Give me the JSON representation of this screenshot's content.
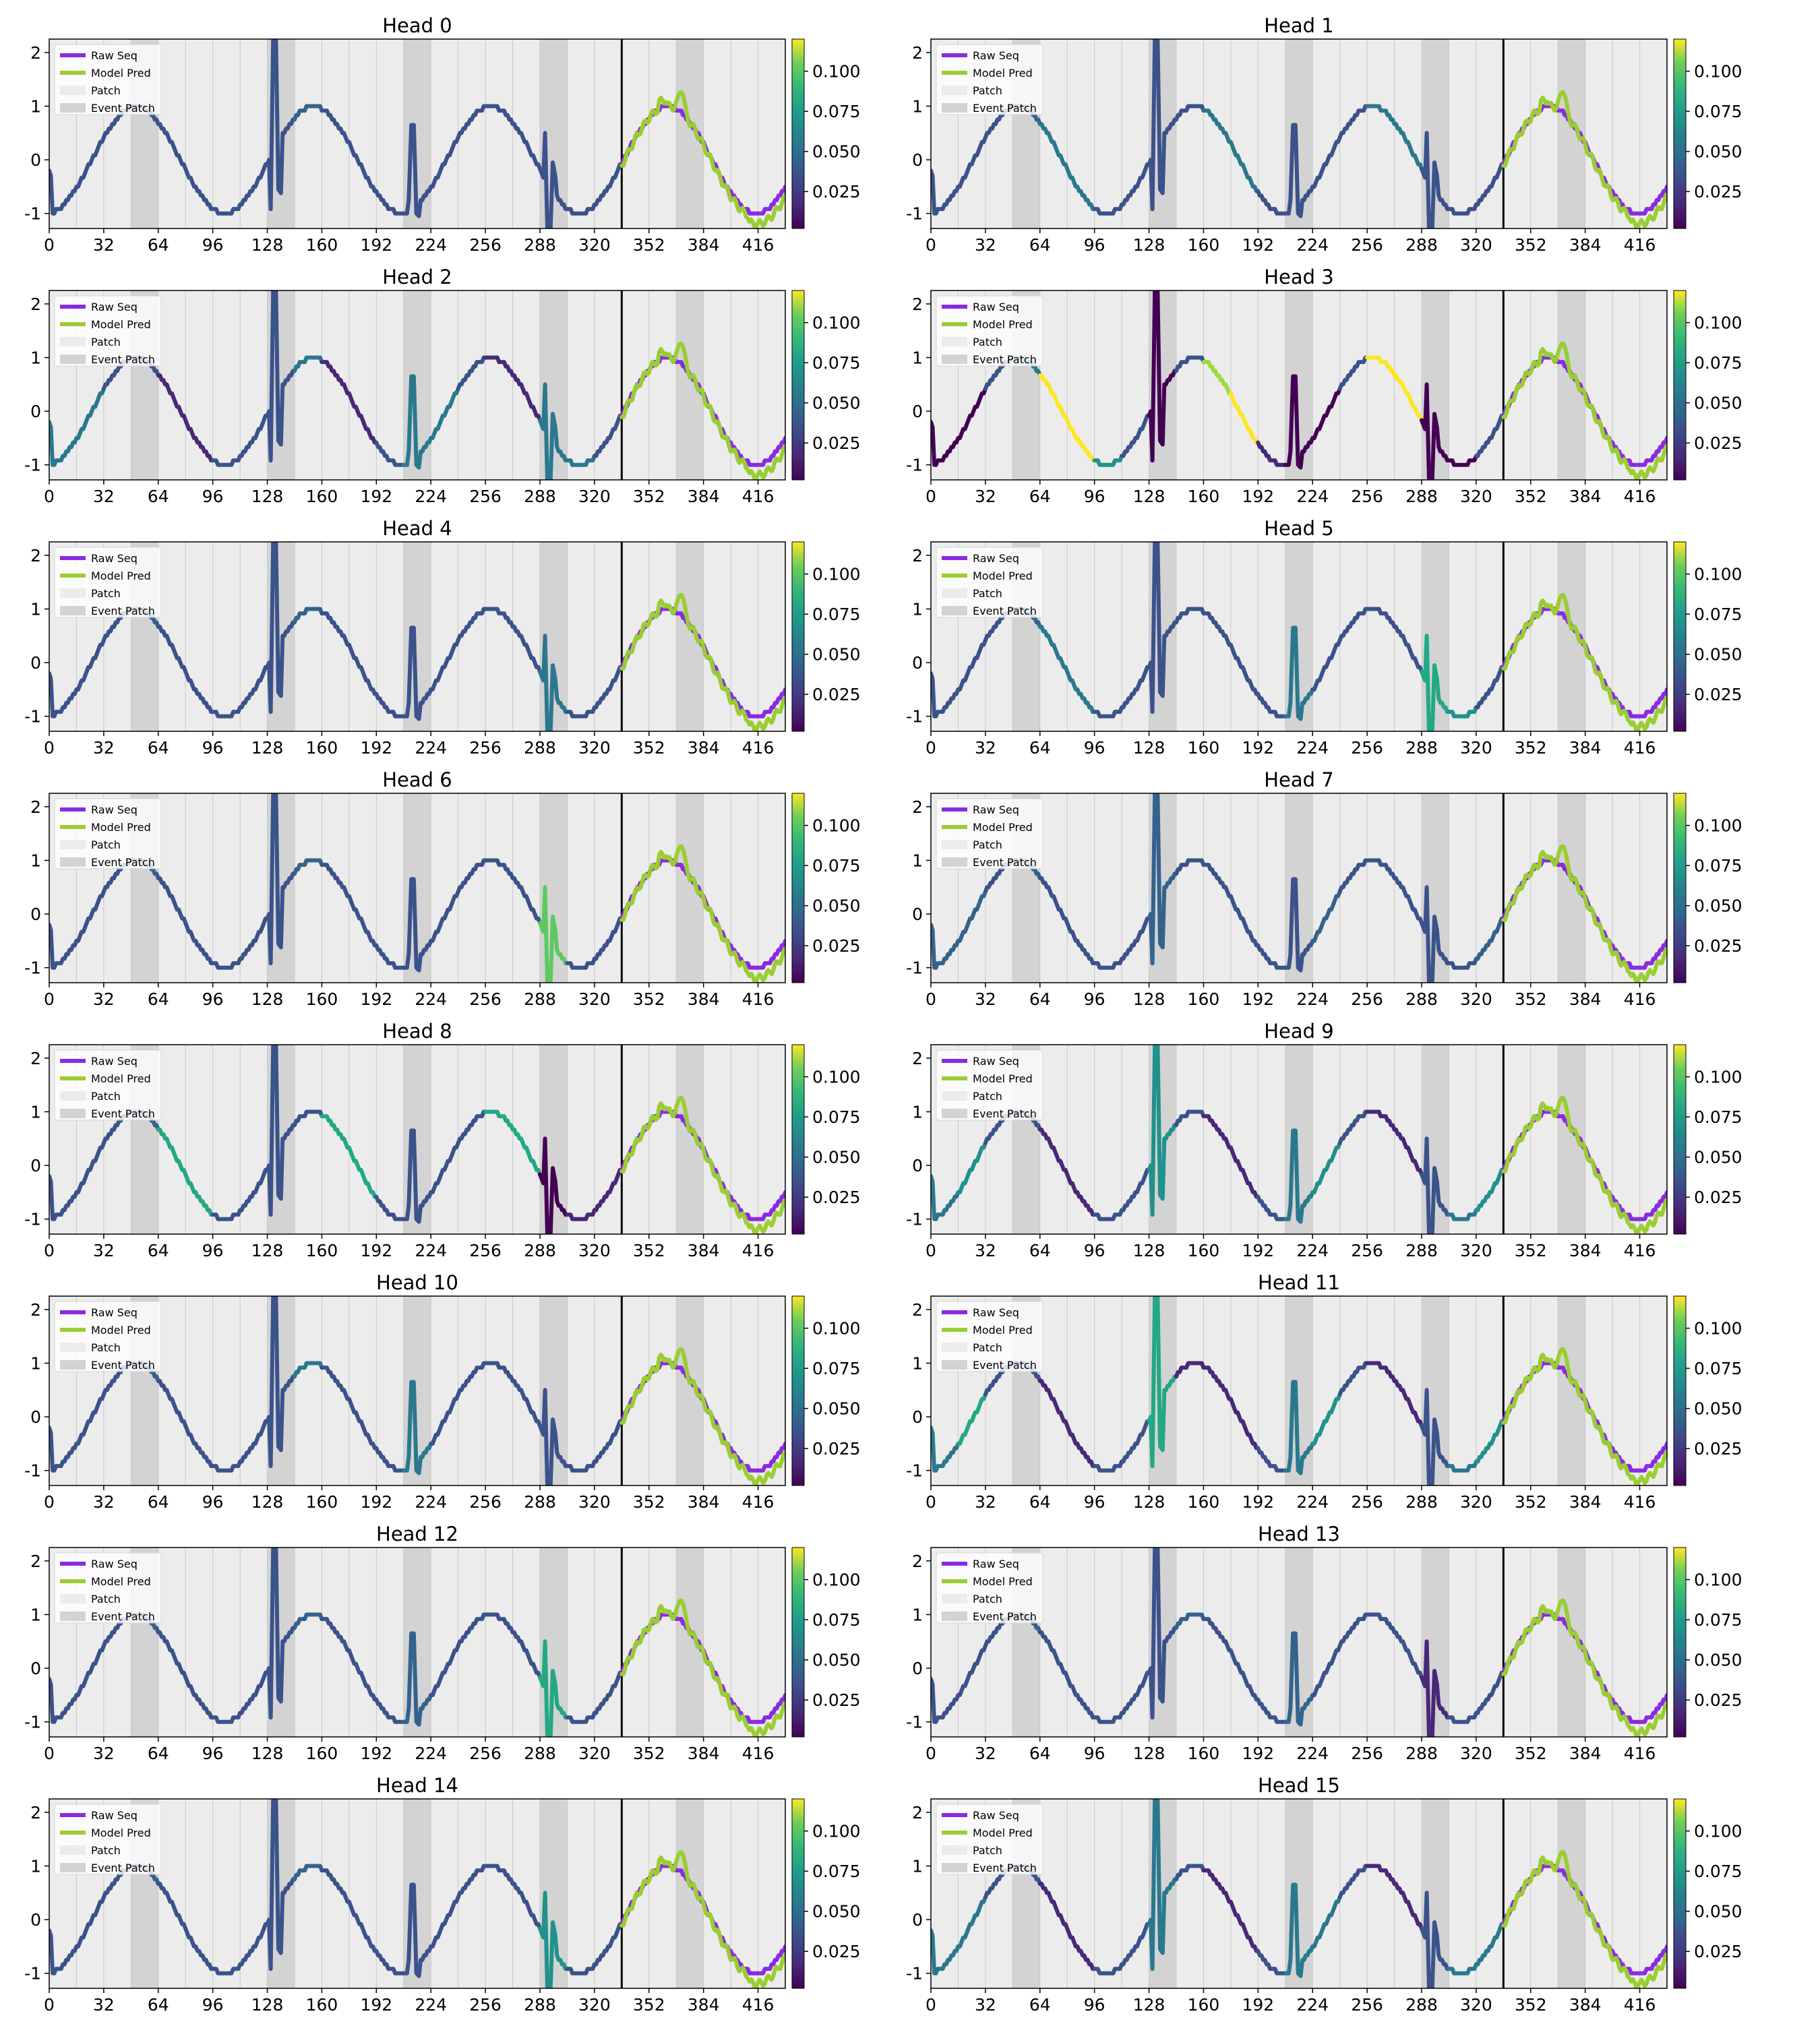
{
  "figure": {
    "xticks": [
      0,
      32,
      64,
      96,
      128,
      160,
      192,
      224,
      256,
      288,
      320,
      352,
      384,
      416
    ],
    "yticks": [
      -1,
      0,
      1,
      2
    ],
    "cbar_ticks": [
      "0.025",
      "0.050",
      "0.075",
      "0.100"
    ],
    "legend": [
      "Raw Seq",
      "Model Pred",
      "Patch",
      "Event Patch"
    ],
    "colors": {
      "raw_seq": "#8a2be2",
      "model_pred": "#9acd32",
      "patch": "#ececec",
      "event_patch": "#d3d3d3",
      "divider": "#000000"
    }
  },
  "chart_data": {
    "type": "line",
    "xlim": [
      0,
      432
    ],
    "ylim": [
      -1.28,
      2.25
    ],
    "cbar_range": [
      0.002,
      0.12
    ],
    "colormap": "viridis",
    "patch_length": 16,
    "event_patches": [
      [
        48,
        64
      ],
      [
        128,
        144
      ],
      [
        208,
        224
      ],
      [
        288,
        304
      ],
      [
        368,
        384
      ]
    ],
    "context_end": 336,
    "spikes": [
      {
        "x": 133,
        "peak": 2.4,
        "base_before": -0.92,
        "after": -0.55,
        "low": -0.62
      },
      {
        "x": 214,
        "peak": 0.65,
        "base_before": -0.75,
        "after": -1.0,
        "low": -1.05
      },
      {
        "x": 294,
        "peak": -1.5,
        "base_before": 0.5,
        "after": -0.05,
        "low": -0.3
      }
    ],
    "heads": [
      {
        "title": "Head 0",
        "seg_colors": [
          "#3b528b",
          "#3b528b",
          "#3b528b",
          "#3b528b",
          "#3b528b",
          "#3b528b",
          "#3b528b",
          "#3b528b",
          "#3b528b",
          "#33638d",
          "#3b528b",
          "#3b528b",
          "#3b528b",
          "#3b528b",
          "#3b528b",
          "#3b528b",
          "#3b528b",
          "#3b528b",
          "#3b528b",
          "#3b528b",
          "#3b528b"
        ]
      },
      {
        "title": "Head 1",
        "seg_colors": [
          "#3b528b",
          "#3b528b",
          "#3b528b",
          "#33638d",
          "#2a788e",
          "#2a788e",
          "#3b528b",
          "#3b528b",
          "#3b528b",
          "#3b528b",
          "#2a788e",
          "#2a788e",
          "#3b528b",
          "#3b528b",
          "#3b528b",
          "#3b528b",
          "#2a788e",
          "#2a788e",
          "#3b528b",
          "#3b528b",
          "#3b528b"
        ]
      },
      {
        "title": "Head 2",
        "seg_colors": [
          "#2a788e",
          "#2a788e",
          "#3b528b",
          "#3b528b",
          "#482878",
          "#482878",
          "#3b528b",
          "#3b528b",
          "#3b528b",
          "#2a788e",
          "#482878",
          "#482878",
          "#3b528b",
          "#2a788e",
          "#2a788e",
          "#3b528b",
          "#482878",
          "#482878",
          "#2a788e",
          "#2a788e",
          "#3b528b"
        ]
      },
      {
        "title": "Head 3",
        "seg_colors": [
          "#440154",
          "#440154",
          "#3b528b",
          "#2a788e",
          "#fde725",
          "#fde725",
          "#21918c",
          "#3b528b",
          "#440154",
          "#3b528b",
          "#a0da39",
          "#fde725",
          "#482878",
          "#440154",
          "#440154",
          "#3b528b",
          "#fde725",
          "#fde725",
          "#440154",
          "#440154",
          "#3b528b"
        ]
      },
      {
        "title": "Head 4",
        "seg_colors": [
          "#3b528b",
          "#3b528b",
          "#3b528b",
          "#33638d",
          "#3b528b",
          "#3b528b",
          "#3b528b",
          "#3b528b",
          "#3b528b",
          "#33638d",
          "#3b528b",
          "#3b528b",
          "#3b528b",
          "#3b528b",
          "#3b528b",
          "#3b528b",
          "#3b528b",
          "#3b528b",
          "#2a788e",
          "#3b528b",
          "#3b528b"
        ]
      },
      {
        "title": "Head 5",
        "seg_colors": [
          "#3b528b",
          "#3b528b",
          "#3b528b",
          "#33638d",
          "#2a788e",
          "#2a788e",
          "#3b528b",
          "#3b528b",
          "#3b528b",
          "#3b528b",
          "#3b528b",
          "#3b528b",
          "#3b528b",
          "#2a788e",
          "#3b528b",
          "#3b528b",
          "#3b528b",
          "#3b528b",
          "#22a884",
          "#21918c",
          "#3b528b"
        ]
      },
      {
        "title": "Head 6",
        "seg_colors": [
          "#3b528b",
          "#3b528b",
          "#3b528b",
          "#33638d",
          "#3b528b",
          "#3b528b",
          "#3b528b",
          "#3b528b",
          "#3b528b",
          "#33638d",
          "#3b528b",
          "#3b528b",
          "#3b528b",
          "#3b528b",
          "#3b528b",
          "#3b528b",
          "#3b528b",
          "#3b528b",
          "#5ec962",
          "#3b528b",
          "#3b528b"
        ]
      },
      {
        "title": "Head 7",
        "seg_colors": [
          "#33638d",
          "#33638d",
          "#3b528b",
          "#33638d",
          "#3b528b",
          "#3b528b",
          "#3b528b",
          "#3b528b",
          "#33638d",
          "#3b528b",
          "#3b528b",
          "#3b528b",
          "#3b528b",
          "#3b528b",
          "#33638d",
          "#3b528b",
          "#3b528b",
          "#3b528b",
          "#3b528b",
          "#3b528b",
          "#33638d"
        ]
      },
      {
        "title": "Head 8",
        "seg_colors": [
          "#3b528b",
          "#3b528b",
          "#3b528b",
          "#33638d",
          "#22a884",
          "#22a884",
          "#3b528b",
          "#3b528b",
          "#3b528b",
          "#3b528b",
          "#22a884",
          "#22a884",
          "#3b528b",
          "#3b528b",
          "#3b528b",
          "#3b528b",
          "#22a884",
          "#22a884",
          "#440154",
          "#482878",
          "#482878"
        ]
      },
      {
        "title": "Head 9",
        "seg_colors": [
          "#2a788e",
          "#21918c",
          "#3b528b",
          "#3b528b",
          "#482878",
          "#482878",
          "#3b528b",
          "#3b528b",
          "#21918c",
          "#3b528b",
          "#482878",
          "#482878",
          "#3b528b",
          "#2a788e",
          "#21918c",
          "#3b528b",
          "#482878",
          "#482878",
          "#3b528b",
          "#2a788e",
          "#21918c"
        ]
      },
      {
        "title": "Head 10",
        "seg_colors": [
          "#3b528b",
          "#3b528b",
          "#3b528b",
          "#33638d",
          "#3b528b",
          "#3b528b",
          "#3b528b",
          "#3b528b",
          "#3b528b",
          "#2a788e",
          "#3b528b",
          "#3b528b",
          "#3b528b",
          "#2a788e",
          "#3b528b",
          "#3b528b",
          "#3b528b",
          "#3b528b",
          "#3b528b",
          "#3b528b",
          "#3b528b"
        ]
      },
      {
        "title": "Head 11",
        "seg_colors": [
          "#2a788e",
          "#22a884",
          "#3b528b",
          "#3b528b",
          "#482878",
          "#482878",
          "#3b528b",
          "#3b528b",
          "#22a884",
          "#482878",
          "#482878",
          "#482878",
          "#3b528b",
          "#2a788e",
          "#21918c",
          "#3b528b",
          "#482878",
          "#482878",
          "#3b528b",
          "#2a788e",
          "#21918c"
        ]
      },
      {
        "title": "Head 12",
        "seg_colors": [
          "#3b528b",
          "#3b528b",
          "#3b528b",
          "#33638d",
          "#3b528b",
          "#3b528b",
          "#3b528b",
          "#3b528b",
          "#3b528b",
          "#33638d",
          "#3b528b",
          "#3b528b",
          "#3b528b",
          "#33638d",
          "#3b528b",
          "#3b528b",
          "#3b528b",
          "#3b528b",
          "#22a884",
          "#3b528b",
          "#3b528b"
        ]
      },
      {
        "title": "Head 13",
        "seg_colors": [
          "#3b528b",
          "#3b528b",
          "#3b528b",
          "#33638d",
          "#3b528b",
          "#3b528b",
          "#3b528b",
          "#3b528b",
          "#3b528b",
          "#33638d",
          "#3b528b",
          "#3b528b",
          "#3b528b",
          "#33638d",
          "#3b528b",
          "#3b528b",
          "#3b528b",
          "#3b528b",
          "#482878",
          "#3b528b",
          "#3b528b"
        ]
      },
      {
        "title": "Head 14",
        "seg_colors": [
          "#3b528b",
          "#3b528b",
          "#3b528b",
          "#33638d",
          "#3b528b",
          "#3b528b",
          "#3b528b",
          "#3b528b",
          "#3b528b",
          "#33638d",
          "#3b528b",
          "#3b528b",
          "#3b528b",
          "#3b528b",
          "#3b528b",
          "#3b528b",
          "#3b528b",
          "#3b528b",
          "#21918c",
          "#3b528b",
          "#3b528b"
        ]
      },
      {
        "title": "Head 15",
        "seg_colors": [
          "#2a788e",
          "#2a788e",
          "#3b528b",
          "#3b528b",
          "#482878",
          "#482878",
          "#3b528b",
          "#3b528b",
          "#2a788e",
          "#3b528b",
          "#482878",
          "#482878",
          "#3b528b",
          "#2a788e",
          "#2a788e",
          "#3b528b",
          "#482878",
          "#482878",
          "#3b528b",
          "#2a788e",
          "#2a788e"
        ]
      }
    ]
  }
}
